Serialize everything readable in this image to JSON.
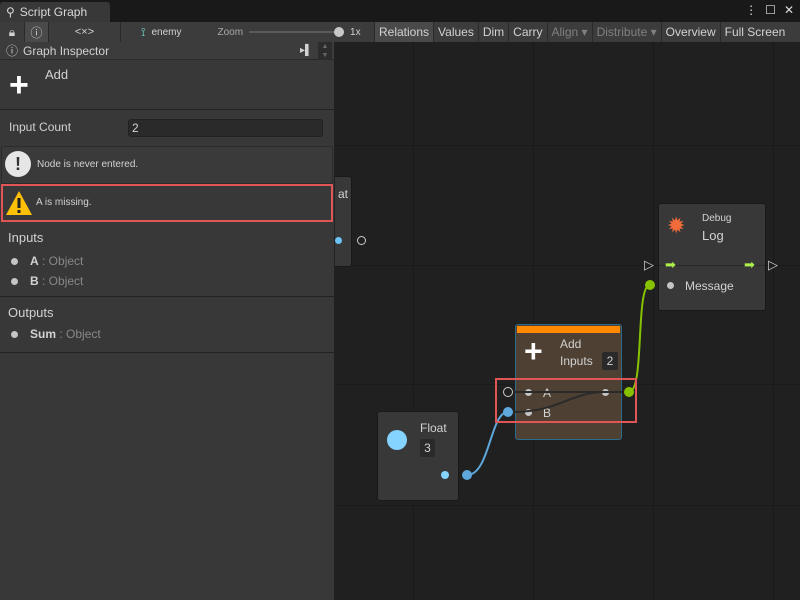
{
  "window": {
    "tab_title": "Script Graph",
    "icons": [
      "hierarchy-icon",
      "more-icon",
      "maximize-icon",
      "close-icon"
    ]
  },
  "toolbar": {
    "graph_name": "enemy",
    "zoom_label": "Zoom",
    "zoom_value": "1x",
    "zoom_level": 1.0,
    "buttons": [
      {
        "label": "Relations",
        "state": "active"
      },
      {
        "label": "Values"
      },
      {
        "label": "Dim"
      },
      {
        "label": "Carry"
      },
      {
        "label": "Align ▾",
        "state": "disabled"
      },
      {
        "label": "Distribute ▾",
        "state": "disabled"
      },
      {
        "label": "Overview"
      },
      {
        "label": "Full Screen"
      }
    ]
  },
  "inspector": {
    "title": "Graph Inspector",
    "node_title": "Add",
    "input_count_label": "Input Count",
    "input_count_value": "2",
    "messages": [
      {
        "text": "Node is never entered.",
        "type": "info"
      },
      {
        "text": "A is missing.",
        "type": "warning"
      }
    ],
    "inputs_label": "Inputs",
    "inputs": [
      {
        "name": "A",
        "type": ": Object"
      },
      {
        "name": "B",
        "type": ": Object"
      }
    ],
    "outputs_label": "Outputs",
    "outputs": [
      {
        "name": "Sum",
        "type": ": Object"
      }
    ]
  },
  "graph": {
    "hidden_node_fragment": "at",
    "debug_node": {
      "category": "Debug",
      "title": "Log",
      "port": "Message",
      "color": "#f26b3a"
    },
    "add_node": {
      "title": "Add",
      "inputs_label": "Inputs",
      "inputs_value": "2",
      "ports": [
        "A",
        "B"
      ],
      "header_color": "#ff8a00"
    },
    "float_node": {
      "title": "Float",
      "value": "3",
      "color": "#84d4ff"
    },
    "highlight_color": "#e05555"
  }
}
